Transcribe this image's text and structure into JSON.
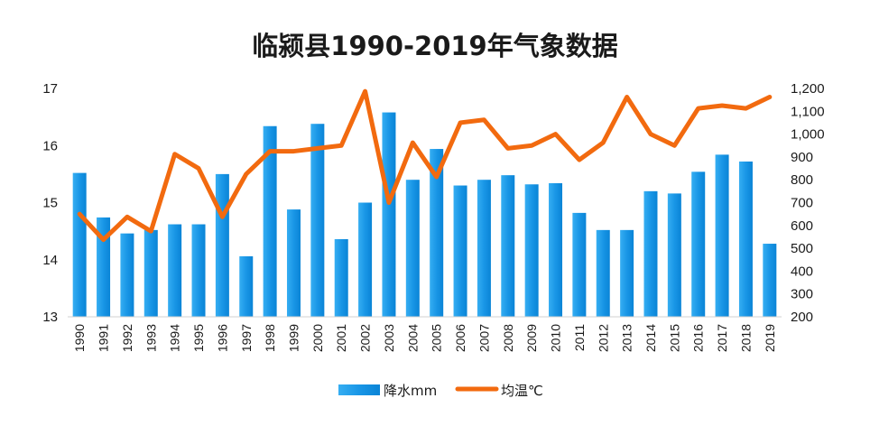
{
  "chart_data": {
    "type": "bar+line",
    "title": "临颍县1990-2019年气象数据",
    "categories": [
      "1990",
      "1991",
      "1992",
      "1993",
      "1994",
      "1995",
      "1996",
      "1997",
      "1998",
      "1999",
      "2000",
      "2001",
      "2002",
      "2003",
      "2004",
      "2005",
      "2006",
      "2007",
      "2008",
      "2009",
      "2010",
      "2011",
      "2012",
      "2013",
      "2014",
      "2015",
      "2016",
      "2017",
      "2018",
      "2019"
    ],
    "series": [
      {
        "name": "降水mm",
        "type": "bar",
        "axis": "right",
        "color": "#1a9be8",
        "values": [
          830,
          635,
          565,
          580,
          605,
          605,
          825,
          465,
          1035,
          670,
          1045,
          540,
          700,
          1095,
          800,
          935,
          775,
          800,
          820,
          780,
          785,
          655,
          580,
          580,
          750,
          740,
          835,
          910,
          880,
          520
        ]
      },
      {
        "name": "均温℃",
        "type": "line",
        "axis": "left",
        "color": "#f26a0f",
        "values": [
          14.8,
          14.35,
          14.75,
          14.5,
          15.85,
          15.6,
          14.75,
          15.5,
          15.9,
          15.9,
          15.95,
          16.0,
          16.95,
          15.0,
          16.05,
          15.45,
          16.4,
          16.45,
          15.95,
          16.0,
          16.2,
          15.75,
          16.05,
          16.85,
          16.2,
          16.0,
          16.65,
          16.7,
          16.65,
          16.85
        ]
      }
    ],
    "y_left": {
      "min": 13,
      "max": 17,
      "ticks": [
        "13",
        "14",
        "15",
        "16",
        "17"
      ]
    },
    "y_right": {
      "min": 200,
      "max": 1200,
      "ticks": [
        "200",
        "300",
        "400",
        "500",
        "600",
        "700",
        "800",
        "900",
        "1,000",
        "1,100",
        "1,200"
      ]
    },
    "legend": {
      "position": "bottom",
      "items": [
        "降水mm",
        "均温℃"
      ]
    },
    "grid": false
  }
}
